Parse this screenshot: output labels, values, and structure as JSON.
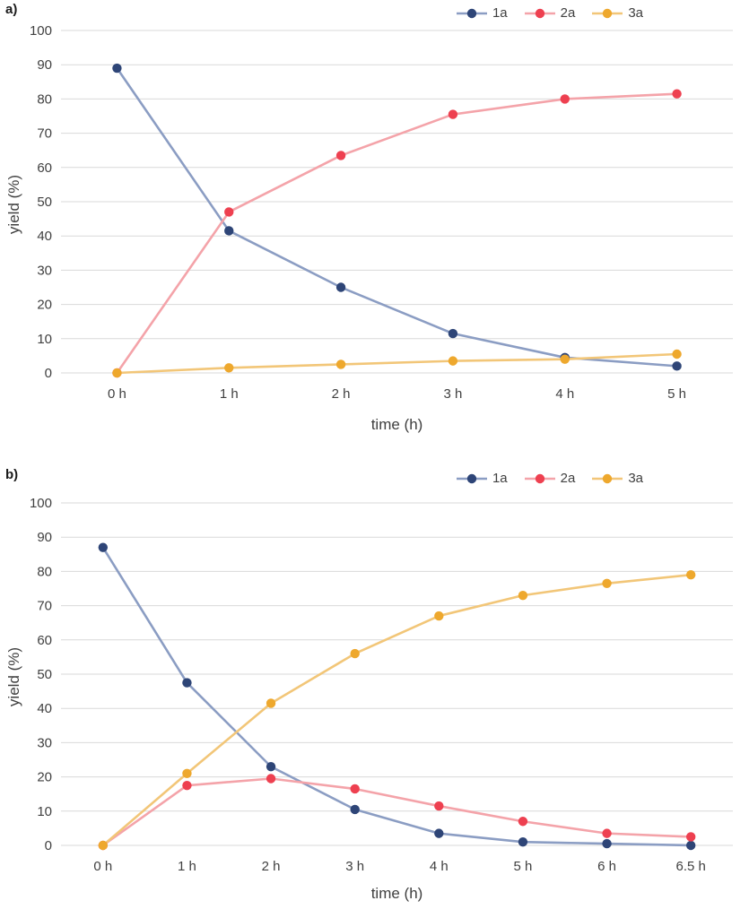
{
  "chart_data": [
    {
      "type": "line",
      "corner_label": "a)",
      "xlabel": "time (h)",
      "ylabel": "yield (%)",
      "ylim": [
        0,
        100
      ],
      "ytick_step": 10,
      "grid": true,
      "legend_position": "top-right",
      "categories": [
        "0 h",
        "1 h",
        "2 h",
        "3 h",
        "4 h",
        "5 h"
      ],
      "series": [
        {
          "name": "1a",
          "line_color": "#8b9dc3",
          "marker_color": "#2e4577",
          "values": [
            89,
            41.5,
            25,
            11.5,
            4.5,
            2
          ]
        },
        {
          "name": "2a",
          "line_color": "#f4a3a9",
          "marker_color": "#ee4050",
          "values": [
            0,
            47,
            63.5,
            75.5,
            80,
            81.5
          ]
        },
        {
          "name": "3a",
          "line_color": "#f2c678",
          "marker_color": "#eea82d",
          "values": [
            0,
            1.5,
            2.5,
            3.5,
            4,
            5.5
          ]
        }
      ]
    },
    {
      "type": "line",
      "corner_label": "b)",
      "xlabel": "time (h)",
      "ylabel": "yield (%)",
      "ylim": [
        0,
        100
      ],
      "ytick_step": 10,
      "grid": true,
      "legend_position": "top-right",
      "categories": [
        "0 h",
        "1 h",
        "2 h",
        "3 h",
        "4 h",
        "5 h",
        "6 h",
        "6.5 h"
      ],
      "series": [
        {
          "name": "1a",
          "line_color": "#8b9dc3",
          "marker_color": "#2e4577",
          "values": [
            87,
            47.5,
            23,
            10.5,
            3.5,
            1,
            0.5,
            0
          ]
        },
        {
          "name": "2a",
          "line_color": "#f4a3a9",
          "marker_color": "#ee4050",
          "values": [
            0,
            17.5,
            19.5,
            16.5,
            11.5,
            7,
            3.5,
            2.5
          ]
        },
        {
          "name": "3a",
          "line_color": "#f2c678",
          "marker_color": "#eea82d",
          "values": [
            0,
            21,
            41.5,
            56,
            67,
            73,
            76.5,
            79
          ]
        }
      ]
    }
  ]
}
